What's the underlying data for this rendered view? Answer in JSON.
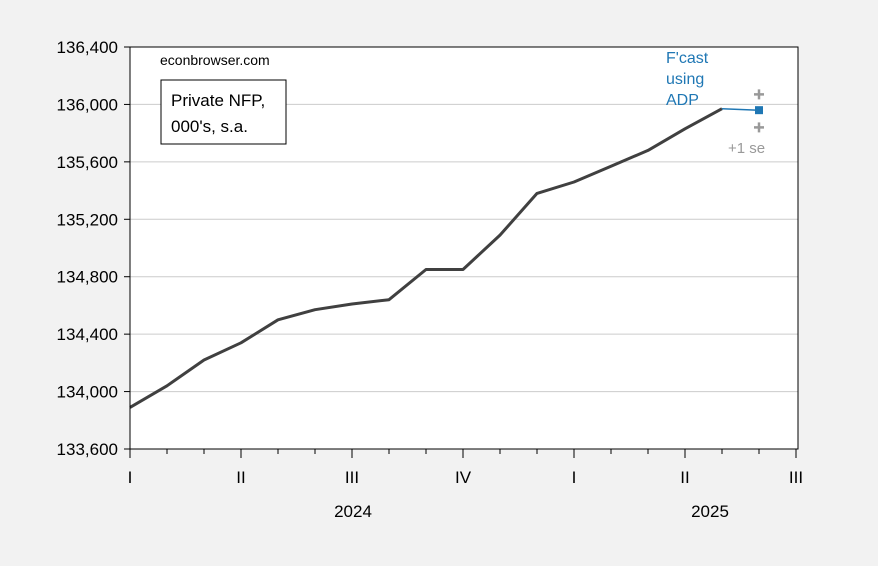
{
  "chart_data": {
    "type": "line",
    "title": "",
    "xlabel": "",
    "ylabel": "",
    "ylim": [
      133600,
      136400
    ],
    "yticks": [
      133600,
      134000,
      134400,
      134800,
      135200,
      135600,
      136000,
      136400
    ],
    "ytick_labels": [
      "133,600",
      "134,000",
      "134,400",
      "134,800",
      "135,200",
      "135,600",
      "136,000",
      "136,400"
    ],
    "grid": "horizontal",
    "x": [
      "2024-01",
      "2024-02",
      "2024-03",
      "2024-04",
      "2024-05",
      "2024-06",
      "2024-07",
      "2024-08",
      "2024-09",
      "2024-10",
      "2024-11",
      "2024-12",
      "2025-01",
      "2025-02",
      "2025-03",
      "2025-04",
      "2025-05",
      "2025-06"
    ],
    "quarter_labels": [
      "I",
      "II",
      "III",
      "IV",
      "I",
      "II",
      "III"
    ],
    "year_labels": [
      "2024",
      "2025"
    ],
    "series": [
      {
        "values": [
          133890,
          134040,
          134220,
          134340,
          134500,
          134570,
          134610,
          134640,
          134850,
          134850,
          135090,
          135380,
          135460,
          135570,
          135680,
          135830,
          135970,
          null
        ],
        "color": "#404040"
      },
      {
        "values": [
          null,
          null,
          null,
          null,
          null,
          null,
          null,
          null,
          null,
          null,
          null,
          null,
          null,
          null,
          null,
          null,
          135970,
          135960
        ],
        "color": "#1f77b4"
      }
    ],
    "error_markers": {
      "x": "2025-06",
      "upper": 136070,
      "lower": 135840,
      "color": "#999999"
    },
    "annotations": {
      "source": "econbrowser.com",
      "box_line1": "Private NFP,",
      "box_line2": "000's, s.a.",
      "forecast_line1": "F'cast",
      "forecast_line2": "using",
      "forecast_line3": "ADP",
      "se_label": "+1 se"
    },
    "colors": {
      "background": "#f2f2f2",
      "plot_background": "#ffffff",
      "main_line": "#404040",
      "forecast": "#1f77b4",
      "se_markers": "#999999",
      "grid": "#cccccc"
    }
  }
}
